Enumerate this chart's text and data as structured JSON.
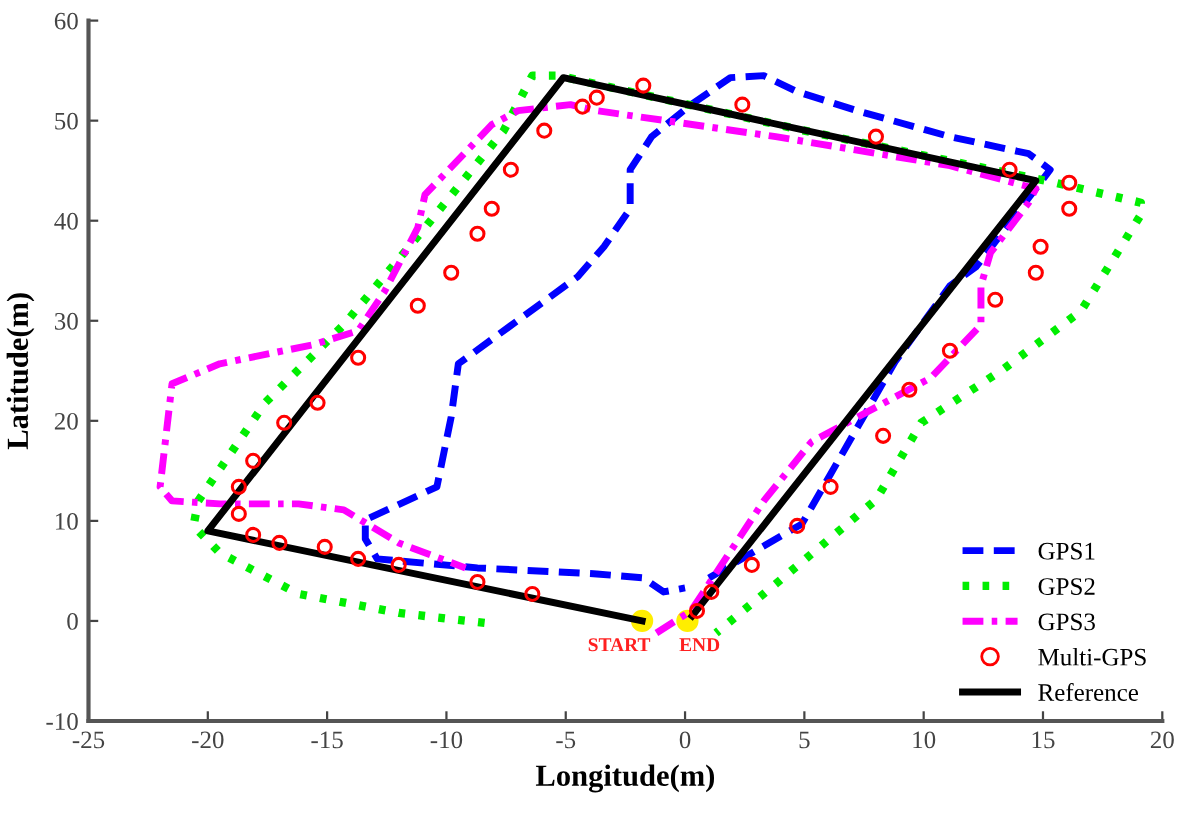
{
  "chart_data": {
    "type": "line",
    "xlabel": "Longitude(m)",
    "ylabel": "Latitude(m)",
    "xlim": [
      -25,
      20
    ],
    "ylim": [
      -10,
      60
    ],
    "xticks": [
      -25,
      -20,
      -15,
      -10,
      -5,
      0,
      5,
      10,
      15,
      20
    ],
    "yticks": [
      -10,
      0,
      10,
      20,
      30,
      40,
      50,
      60
    ],
    "grid": false,
    "legend": "bottom right",
    "series": [
      {
        "name": "GPS1",
        "color": "#0000ff",
        "line_style": "dashed",
        "x": [
          1,
          4.9,
          8.8,
          11.1,
          12.2,
          15.3,
          14.4,
          11.1,
          7.2,
          4.7,
          3.3,
          1.9,
          0.25,
          -1.4,
          -2.3,
          -2.3,
          -3.4,
          -4.5,
          -9.5,
          -9.8,
          -10.4,
          -13.4,
          -13.4,
          -12.9,
          -8.7,
          -3.7,
          -1.75,
          -0.9,
          0
        ],
        "values": [
          4.3,
          9.7,
          25.9,
          33.5,
          35.4,
          45.1,
          46.7,
          48.4,
          51,
          52.9,
          54.5,
          54.3,
          51.6,
          48.4,
          45.1,
          41.2,
          37.4,
          34.4,
          25.7,
          20.4,
          13.4,
          10.1,
          8.2,
          6.2,
          5.3,
          4.7,
          4.3,
          2.9,
          3.3
        ]
      },
      {
        "name": "GPS2",
        "color": "#00ee00",
        "line_style": "dotted",
        "x": [
          -8.4,
          -12,
          -16.2,
          -19.5,
          -20.6,
          -20.4,
          -17.6,
          -14.3,
          -10.9,
          -7.6,
          -6.4,
          -5.3,
          5,
          15.5,
          19.1,
          19.1,
          16.6,
          13.3,
          9.9,
          8,
          3.8,
          1.3
        ],
        "values": [
          -0.2,
          0.8,
          2.7,
          6.8,
          9.5,
          12,
          21.8,
          29.6,
          39.3,
          49,
          54.5,
          54.5,
          49,
          43.8,
          41.8,
          40.6,
          31,
          25.1,
          19.8,
          12.1,
          3.7,
          -1.2
        ]
      },
      {
        "name": "GPS3",
        "color": "#ff00ff",
        "line_style": "dashdot",
        "x": [
          -1.2,
          0.25,
          3.3,
          5.3,
          10.3,
          12.4,
          12.4,
          12.8,
          14.4,
          14.7,
          11.1,
          3.8,
          -3.7,
          -4.8,
          -7,
          -8.1,
          -10.9,
          -11.2,
          -12.6,
          -13.7,
          -15.6,
          -19.5,
          -21.5,
          -22,
          -21.5,
          -19.5,
          -16.2,
          -14.3,
          -12,
          -9.2
        ],
        "values": [
          -1.2,
          1,
          12,
          17.9,
          24.3,
          29.6,
          33.5,
          36.8,
          41.8,
          43.2,
          45.5,
          48.4,
          51,
          51.6,
          51,
          49.6,
          42.6,
          39.3,
          32.9,
          29,
          27.6,
          25.7,
          23.7,
          13.4,
          12,
          11.7,
          11.7,
          11.1,
          7.8,
          5.3
        ]
      },
      {
        "name": "Multi-GPS",
        "type": "scatter",
        "marker": "circle",
        "color": "#ff0000",
        "x": [
          -6.4,
          -8.7,
          -12,
          -13.7,
          -15.1,
          -17,
          -18.1,
          -18.7,
          -18.7,
          -18.1,
          -16.8,
          -15.4,
          -13.7,
          -11.2,
          -9.8,
          -8.7,
          -8.1,
          -7.3,
          -5.9,
          -4.3,
          -3.7,
          -1.75,
          2.4,
          8,
          13.6,
          16.1,
          16.1,
          14.9,
          14.7,
          13,
          11.1,
          9.4,
          8.3,
          6.1,
          4.7,
          2.8,
          1.1,
          0.5
        ],
        "values": [
          2.7,
          3.9,
          5.6,
          6.2,
          7.4,
          7.8,
          8.6,
          10.7,
          13.4,
          16,
          19.8,
          21.8,
          26.3,
          31.5,
          34.8,
          38.7,
          41.2,
          45.1,
          49,
          51.4,
          52.3,
          53.5,
          51.6,
          48.4,
          45.1,
          43.8,
          41.2,
          37.4,
          34.8,
          32.1,
          27,
          23.1,
          18.5,
          13.4,
          9.5,
          5.6,
          2.9,
          1
        ]
      },
      {
        "name": "Reference",
        "color": "#000000",
        "line_style": "solid",
        "x": [
          -1.8,
          -20,
          -5.1,
          14.7,
          0.3
        ],
        "values": [
          0,
          9,
          54.3,
          44,
          0.5
        ]
      }
    ],
    "annotations": [
      {
        "text": "START",
        "x": -1.8,
        "y": 0
      },
      {
        "text": "END",
        "x": 0.1,
        "y": 0
      }
    ]
  }
}
